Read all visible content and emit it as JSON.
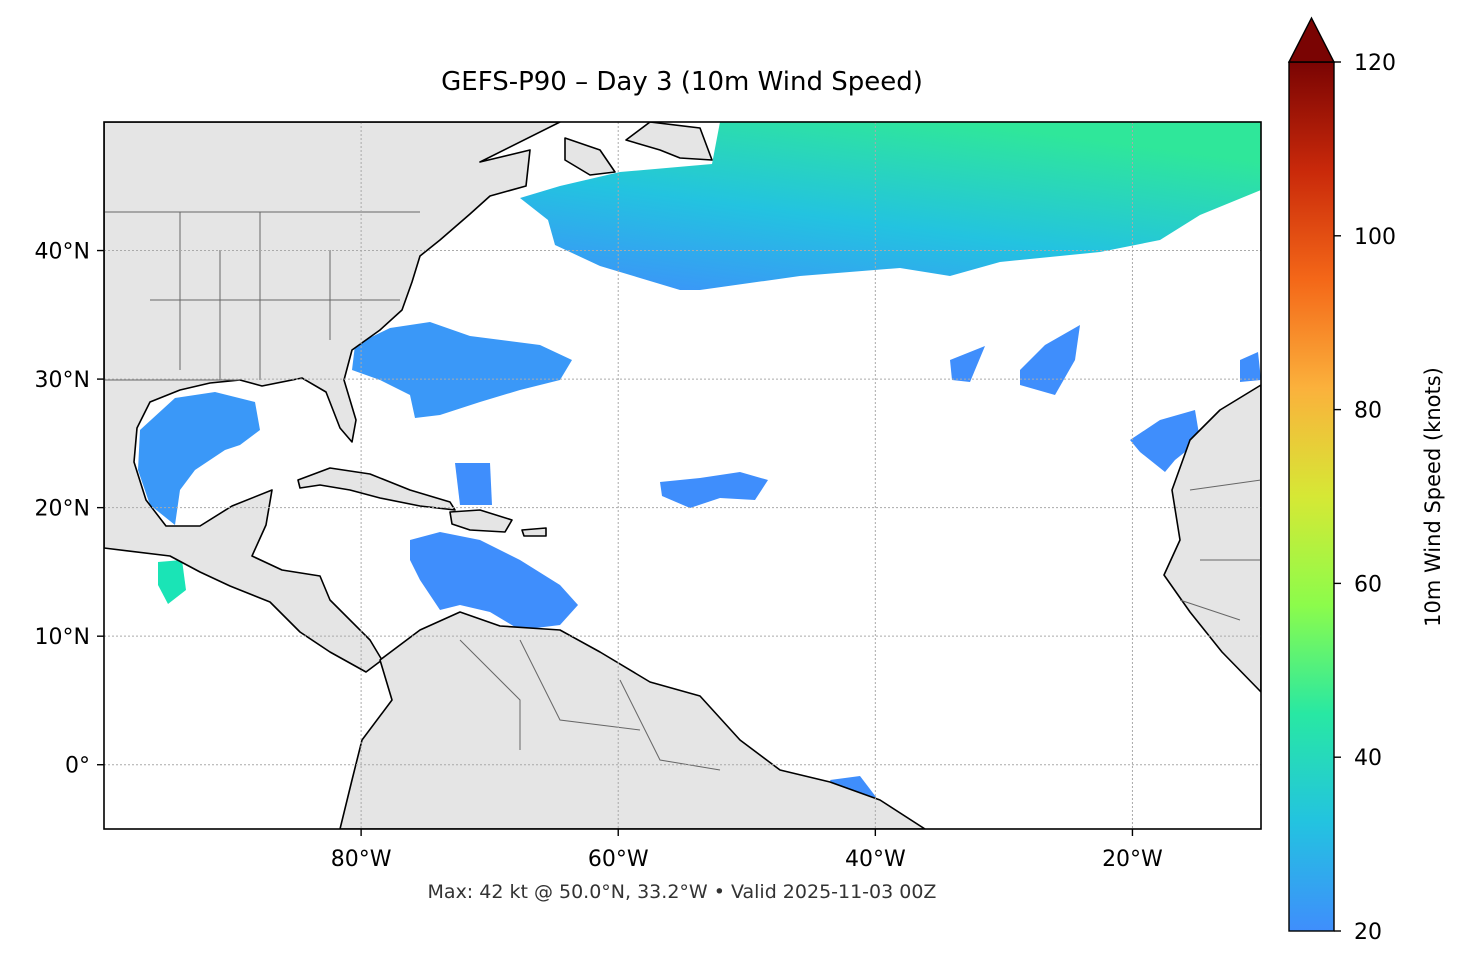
{
  "chart_data": {
    "type": "map",
    "title": "GEFS-P90 – Day 3 (10m Wind Speed)",
    "footer": "Max: 42 kt @ 50.0°N, 33.2°W • Valid 2025-11-03 00Z",
    "xlim": [
      -100,
      -10
    ],
    "ylim": [
      -5,
      50
    ],
    "xticks": [
      {
        "value": -80,
        "label": "80°W"
      },
      {
        "value": -60,
        "label": "60°W"
      },
      {
        "value": -40,
        "label": "40°W"
      },
      {
        "value": -20,
        "label": "20°W"
      }
    ],
    "yticks": [
      {
        "value": 0,
        "label": "0°"
      },
      {
        "value": 10,
        "label": "10°N"
      },
      {
        "value": 20,
        "label": "20°N"
      },
      {
        "value": 30,
        "label": "30°N"
      },
      {
        "value": 40,
        "label": "40°N"
      }
    ],
    "grid": true,
    "colorbar": {
      "label": "10m Wind Speed (knots)",
      "lim": [
        20,
        120
      ],
      "ticks": [
        20,
        40,
        60,
        80,
        100,
        120
      ],
      "colors": [
        "#3f8efc",
        "#23c3e0",
        "#28e8a3",
        "#8cfc4b",
        "#d6e835",
        "#fbb13c",
        "#f46718",
        "#c9290a",
        "#7a0403"
      ],
      "extend": "max"
    }
  }
}
